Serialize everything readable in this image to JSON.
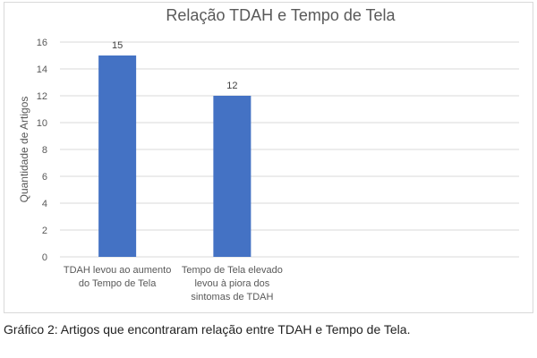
{
  "chart_data": {
    "type": "bar",
    "title": "Relação TDAH e Tempo de Tela",
    "ylabel": "Quantidade de Artigos",
    "xlabel": "",
    "ylim": [
      0,
      16
    ],
    "yticks": [
      0,
      2,
      4,
      6,
      8,
      10,
      12,
      14,
      16
    ],
    "grid": true,
    "legend": false,
    "categories": [
      [
        "TDAH levou ao aumento",
        "do Tempo de Tela"
      ],
      [
        "Tempo de Tela elevado",
        "levou à piora dos",
        "sintomas de TDAH"
      ]
    ],
    "values": [
      15,
      12
    ],
    "data_labels": [
      "15",
      "12"
    ],
    "bar_color": "#4472c4",
    "grid_color": "#d9d9d9"
  },
  "caption": "Gráfico 2: Artigos que encontraram relação entre TDAH e Tempo de Tela."
}
